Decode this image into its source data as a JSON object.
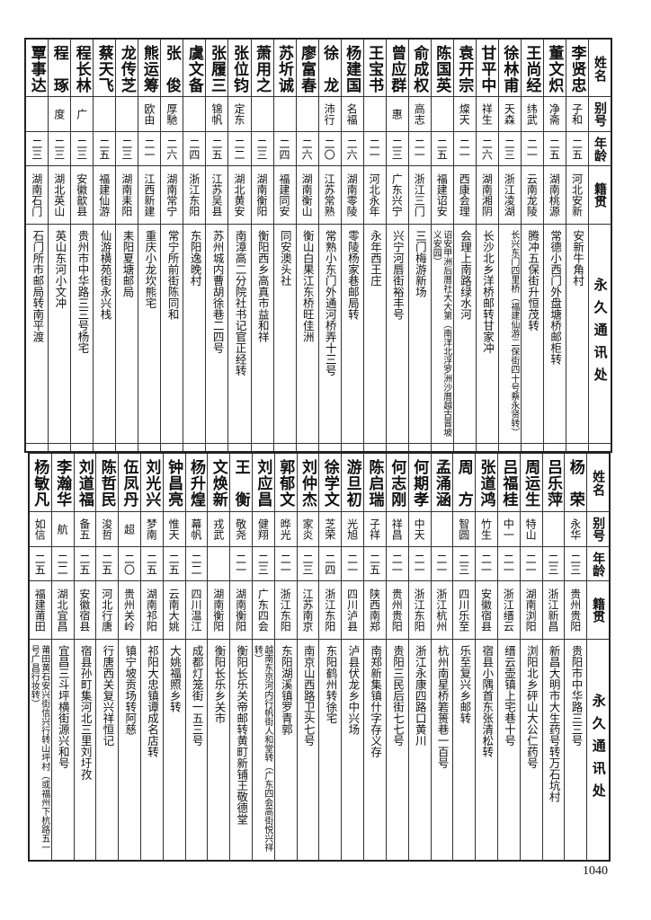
{
  "headers": {
    "name": "姓名",
    "alias": "别号",
    "age": "年龄",
    "native": "籍贯",
    "address": "永久通讯处"
  },
  "top_table": [
    {
      "name": "李贤忠",
      "alias": "子和",
      "age": "二五",
      "native": "河北安新",
      "address": "安新牛角村"
    },
    {
      "name": "董文炽",
      "alias": "净斋",
      "age": "二五",
      "native": "湖南桃源",
      "address": "常德小西门外盘塘桥邮柜转"
    },
    {
      "name": "王尚经",
      "alias": "纬武",
      "age": "二一",
      "native": "云南龙陵",
      "address": "腾冲五保街升恒茂转"
    },
    {
      "name": "徐林甫",
      "alias": "天森",
      "age": "二三",
      "native": "浙江凌湖",
      "address": "长兴东门四里桥（福建仙游二保街四十号蔡永贤转）"
    },
    {
      "name": "甘平中",
      "alias": "祥生",
      "age": "二六",
      "native": "湖南湘阴",
      "address": "长沙北乡洋桥邮转甘家冲"
    },
    {
      "name": "袁开宗",
      "alias": "燦天",
      "age": "二一",
      "native": "西康会理",
      "address": "会理上南路绿水河"
    },
    {
      "name": "陈国英",
      "alias": "",
      "age": "二五",
      "native": "福建诏安",
      "address": "诏安甲洲后厝社大大第（南洋北浮罗洲沙厝越古晋坡义安园）"
    },
    {
      "name": "俞成权",
      "alias": "高志",
      "age": "二一",
      "native": "浙江三门",
      "address": "三门梅游新场"
    },
    {
      "name": "曾应群",
      "alias": "惠",
      "age": "二三",
      "native": "广东兴宁",
      "address": "兴宁河唇街裕丰号"
    },
    {
      "name": "王宝书",
      "alias": "",
      "age": "二一",
      "native": "河北永年",
      "address": "永年西王庄"
    },
    {
      "name": "杨建国",
      "alias": "名福",
      "age": "二六",
      "native": "湖南零陵",
      "address": "零陵杨家巷邮局转"
    },
    {
      "name": "徐　龙",
      "alias": "沛行",
      "age": "二〇",
      "native": "江苏常熟",
      "address": "常熟小东门外通河桥弄十三号"
    },
    {
      "name": "廖富春",
      "alias": "",
      "age": "二六",
      "native": "湖南衡山",
      "address": "衡山白果江东桥旺佳洲"
    },
    {
      "name": "苏圻诚",
      "alias": "",
      "age": "二四",
      "native": "福建同安",
      "address": "同安澳头社"
    },
    {
      "name": "萧用之",
      "alias": "",
      "age": "二三",
      "native": "湖南衡阳",
      "address": "衡阳西乡高真市益和祥"
    },
    {
      "name": "张位钧",
      "alias": "定东",
      "age": "二二",
      "native": "湖北黄安",
      "address": "南漳高二分院社书记官正经转"
    },
    {
      "name": "张履三",
      "alias": "锦帆",
      "age": "二五",
      "native": "江苏吴县",
      "address": "苏州城内曹胡徐巷二四号"
    },
    {
      "name": "虞文备",
      "alias": "",
      "age": "二四",
      "native": "浙江东阳",
      "address": "东阳逸晚村"
    },
    {
      "name": "张　俊",
      "alias": "厚馳",
      "age": "二六",
      "native": "湖南常宁",
      "address": "常宁所前街陈同和"
    },
    {
      "name": "熊运筹",
      "alias": "欧由",
      "age": "二一",
      "native": "江西新建",
      "address": "重庆小龙坎熊宅"
    },
    {
      "name": "龙传芝",
      "alias": "",
      "age": "二三",
      "native": "湖南耒阳",
      "address": "耒阳夏塘邮局"
    },
    {
      "name": "蔡天飞",
      "alias": "",
      "age": "二五",
      "native": "福建仙游",
      "address": "仙游横苑街永兴栈"
    },
    {
      "name": "程长林",
      "alias": "广",
      "age": "二三",
      "native": "安徽歙县",
      "address": "贵州市中华路三三号杨宅"
    },
    {
      "name": "程　琢",
      "alias": "度",
      "age": "二三",
      "native": "湖北英山",
      "address": "英山东河小文冲"
    },
    {
      "name": "覃事达",
      "alias": "",
      "age": "二三",
      "native": "湖南石门",
      "address": "石门所市邮局转南平渡"
    }
  ],
  "bottom_table": [
    {
      "name": "杨　荣",
      "alias": "永华",
      "age": "二三",
      "native": "贵州贵阳",
      "address": "贵阳市中华路三三号"
    },
    {
      "name": "吕乐萍",
      "alias": "",
      "age": "二三",
      "native": "浙江新昌",
      "address": "新昌大明市大生药号转万石坑村"
    },
    {
      "name": "周运生",
      "alias": "特山",
      "age": "二一",
      "native": "湖南浏阳",
      "address": "浏阳北乡砰山大公仁药号"
    },
    {
      "name": "吕福桂",
      "alias": "中一",
      "age": "二一",
      "native": "浙江缙云",
      "address": "缙云壶镇上宅巷十号"
    },
    {
      "name": "张道鸿",
      "alias": "竹生",
      "age": "二一",
      "native": "安徽宿县",
      "address": "宿县小隅首东张清松转"
    },
    {
      "name": "周　方",
      "alias": "智圆",
      "age": "二三",
      "native": "四川乐至",
      "address": "乐至复兴乡邮转"
    },
    {
      "name": "孟涌涵",
      "alias": "",
      "age": "二一",
      "native": "浙江杭州",
      "address": "杭州南星桥箬篑巷一百号"
    },
    {
      "name": "何期孝",
      "alias": "中天",
      "age": "二一",
      "native": "浙江东阳",
      "address": "浙江永康四路口黄川"
    },
    {
      "name": "何志刚",
      "alias": "祥昌",
      "age": "二一",
      "native": "贵州贵阳",
      "address": "贵阳三民后街七七号"
    },
    {
      "name": "陈启瑞",
      "alias": "子祥",
      "age": "二五",
      "native": "陕西南郑",
      "address": "南郑新集镇什字存义存"
    },
    {
      "name": "游旦初",
      "alias": "光旭",
      "age": "二一",
      "native": "四川泸县",
      "address": "泸县伏龙乡中兴场"
    },
    {
      "name": "徐学文",
      "alias": "芝荣",
      "age": "二四",
      "native": "浙江东阳",
      "address": "东阳鹤州转徐宅"
    },
    {
      "name": "刘仲杰",
      "alias": "家炎",
      "age": "二三",
      "native": "江苏南京",
      "address": "南京山西路卫头七号"
    },
    {
      "name": "郭郁文",
      "alias": "晔光",
      "age": "二一",
      "native": "浙江东阳",
      "address": "东阳湖溪镇罗青郭"
    },
    {
      "name": "刘应昌",
      "alias": "健翔",
      "age": "二三",
      "native": "广东四会",
      "address": "越南东京河内行帆街人和堂转（广东四会高街悦兴祥转）"
    },
    {
      "name": "王　衡",
      "alias": "敬尧",
      "age": "二一",
      "native": "湖南衡阳",
      "address": "衡阳长乐关帝邮转黄町新铺王敬德堂"
    },
    {
      "name": "文焕新",
      "alias": "戎武",
      "age": "",
      "native": "湖南衡阳",
      "address": "衡阳长乐乡关市"
    },
    {
      "name": "杨升煌",
      "alias": "幕帆",
      "age": "二二",
      "native": "四川温江",
      "address": "成都灯笼街一五三号"
    },
    {
      "name": "钟昌亮",
      "alias": "惟天",
      "age": "二五",
      "native": "云南大姚",
      "address": "大姚福照乡转"
    },
    {
      "name": "刘光兴",
      "alias": "梦南",
      "age": "二五",
      "native": "湖南祁阳",
      "address": "祁阳大忠镇谭成名店转"
    },
    {
      "name": "伍凤丹",
      "alias": "超",
      "age": "二〇",
      "native": "贵州关岭",
      "address": "镇宁坡贡场转阿慈"
    },
    {
      "name": "陈哲民",
      "alias": "浚哲",
      "age": "二五",
      "native": "河北行唐",
      "address": "行唐西关复兴祥恒记"
    },
    {
      "name": "刘道福",
      "alias": "备五",
      "age": "二五",
      "native": "安徽宿县",
      "address": "宿县孙町集河北三里刘圩孜"
    },
    {
      "name": "李瀚华",
      "alias": "航",
      "age": "二二",
      "native": "湖北宜昌",
      "address": "宜昌三斗坪横街源兴和号"
    },
    {
      "name": "杨敏凡",
      "alias": "如信",
      "age": "二五",
      "native": "福建莆田",
      "address": "莆田黄石安兴街信兴行转山坪村（或福州下杭路五一号广昌行妆转）"
    }
  ],
  "page_number": "1040"
}
